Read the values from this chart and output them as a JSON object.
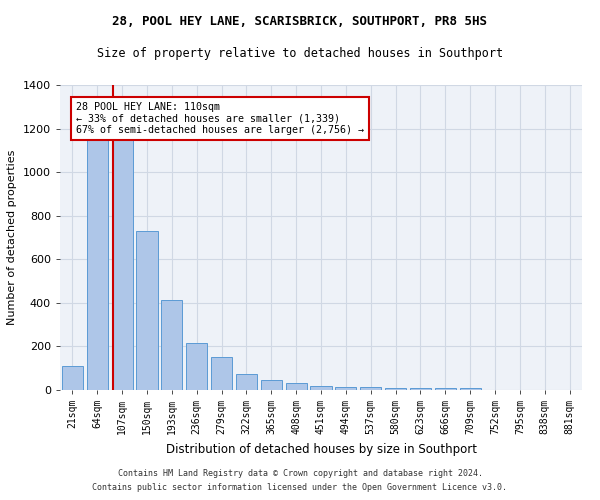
{
  "title1": "28, POOL HEY LANE, SCARISBRICK, SOUTHPORT, PR8 5HS",
  "title2": "Size of property relative to detached houses in Southport",
  "xlabel": "Distribution of detached houses by size in Southport",
  "ylabel": "Number of detached properties",
  "footer1": "Contains HM Land Registry data © Crown copyright and database right 2024.",
  "footer2": "Contains public sector information licensed under the Open Government Licence v3.0.",
  "annotation_line1": "28 POOL HEY LANE: 110sqm",
  "annotation_line2": "← 33% of detached houses are smaller (1,339)",
  "annotation_line3": "67% of semi-detached houses are larger (2,756) →",
  "bar_labels": [
    "21sqm",
    "64sqm",
    "107sqm",
    "150sqm",
    "193sqm",
    "236sqm",
    "279sqm",
    "322sqm",
    "365sqm",
    "408sqm",
    "451sqm",
    "494sqm",
    "537sqm",
    "580sqm",
    "623sqm",
    "666sqm",
    "709sqm",
    "752sqm",
    "795sqm",
    "838sqm",
    "881sqm"
  ],
  "bar_heights": [
    110,
    1165,
    1165,
    730,
    415,
    215,
    150,
    72,
    48,
    30,
    18,
    15,
    15,
    10,
    10,
    10,
    10,
    0,
    0,
    0,
    0
  ],
  "bar_color": "#aec6e8",
  "bar_edge_color": "#5b9bd5",
  "vline_color": "#cc0000",
  "vline_x_index": 2,
  "annotation_box_color": "#cc0000",
  "grid_color": "#d0d8e4",
  "bg_color": "#eef2f8",
  "ylim_max": 1400,
  "yticks": [
    0,
    200,
    400,
    600,
    800,
    1000,
    1200,
    1400
  ]
}
